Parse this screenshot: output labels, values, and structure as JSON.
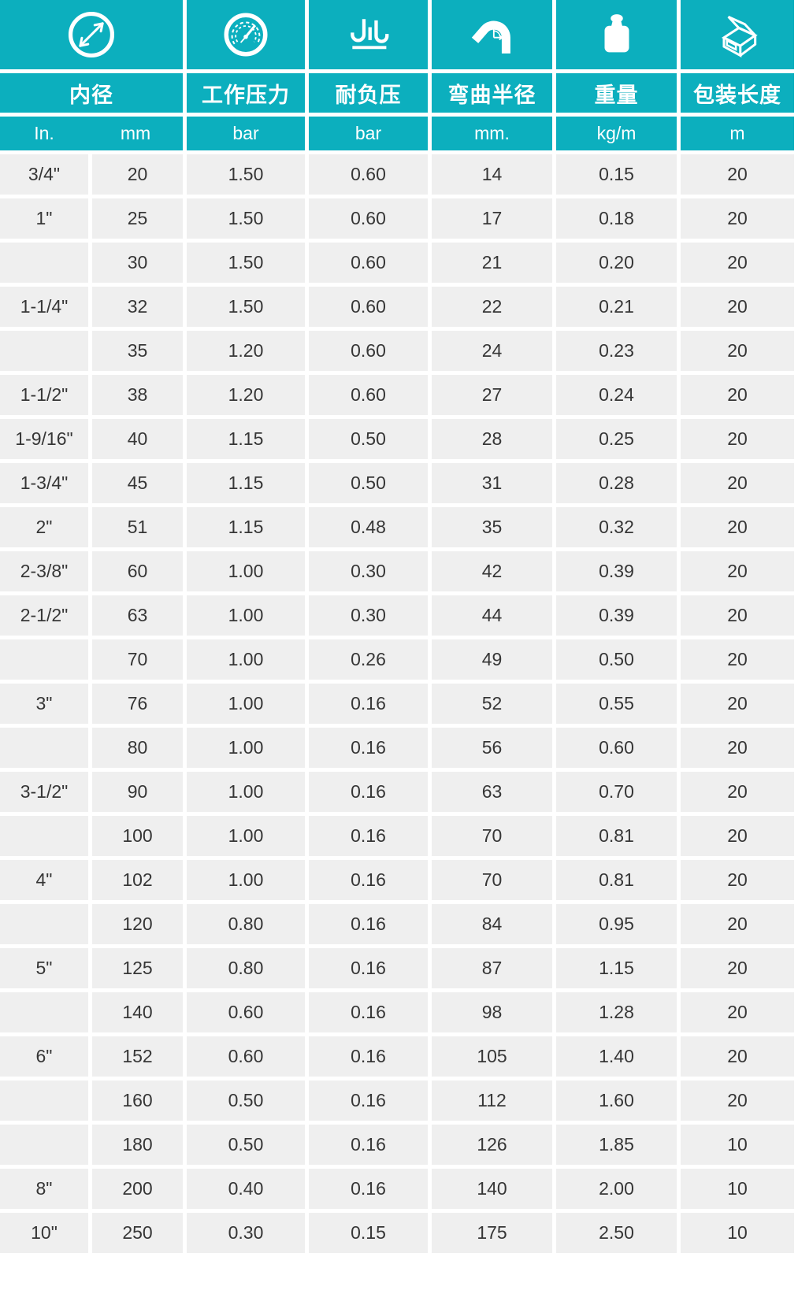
{
  "chart_data": {
    "type": "table",
    "header": {
      "columns": [
        {
          "icon": "diameter-icon",
          "label": "内径",
          "unit_in": "In.",
          "unit_mm": "mm"
        },
        {
          "icon": "pressure-gauge-icon",
          "label": "工作压力",
          "unit": "bar"
        },
        {
          "icon": "vacuum-icon",
          "label": "耐负压",
          "unit": "bar"
        },
        {
          "icon": "bend-radius-icon",
          "label": "弯曲半径",
          "unit": "mm."
        },
        {
          "icon": "weight-icon",
          "label": "重量",
          "unit": "kg/m"
        },
        {
          "icon": "package-icon",
          "label": "包装长度",
          "unit": "m"
        }
      ]
    },
    "rows": [
      [
        "3/4\"",
        "20",
        "1.50",
        "0.60",
        "14",
        "0.15",
        "20"
      ],
      [
        "1\"",
        "25",
        "1.50",
        "0.60",
        "17",
        "0.18",
        "20"
      ],
      [
        "",
        "30",
        "1.50",
        "0.60",
        "21",
        "0.20",
        "20"
      ],
      [
        "1-1/4\"",
        "32",
        "1.50",
        "0.60",
        "22",
        "0.21",
        "20"
      ],
      [
        "",
        "35",
        "1.20",
        "0.60",
        "24",
        "0.23",
        "20"
      ],
      [
        "1-1/2\"",
        "38",
        "1.20",
        "0.60",
        "27",
        "0.24",
        "20"
      ],
      [
        "1-9/16\"",
        "40",
        "1.15",
        "0.50",
        "28",
        "0.25",
        "20"
      ],
      [
        "1-3/4\"",
        "45",
        "1.15",
        "0.50",
        "31",
        "0.28",
        "20"
      ],
      [
        "2\"",
        "51",
        "1.15",
        "0.48",
        "35",
        "0.32",
        "20"
      ],
      [
        "2-3/8\"",
        "60",
        "1.00",
        "0.30",
        "42",
        "0.39",
        "20"
      ],
      [
        "2-1/2\"",
        "63",
        "1.00",
        "0.30",
        "44",
        "0.39",
        "20"
      ],
      [
        "",
        "70",
        "1.00",
        "0.26",
        "49",
        "0.50",
        "20"
      ],
      [
        "3\"",
        "76",
        "1.00",
        "0.16",
        "52",
        "0.55",
        "20"
      ],
      [
        "",
        "80",
        "1.00",
        "0.16",
        "56",
        "0.60",
        "20"
      ],
      [
        "3-1/2\"",
        "90",
        "1.00",
        "0.16",
        "63",
        "0.70",
        "20"
      ],
      [
        "",
        "100",
        "1.00",
        "0.16",
        "70",
        "0.81",
        "20"
      ],
      [
        "4\"",
        "102",
        "1.00",
        "0.16",
        "70",
        "0.81",
        "20"
      ],
      [
        "",
        "120",
        "0.80",
        "0.16",
        "84",
        "0.95",
        "20"
      ],
      [
        "5\"",
        "125",
        "0.80",
        "0.16",
        "87",
        "1.15",
        "20"
      ],
      [
        "",
        "140",
        "0.60",
        "0.16",
        "98",
        "1.28",
        "20"
      ],
      [
        "6\"",
        "152",
        "0.60",
        "0.16",
        "105",
        "1.40",
        "20"
      ],
      [
        "",
        "160",
        "0.50",
        "0.16",
        "112",
        "1.60",
        "20"
      ],
      [
        "",
        "180",
        "0.50",
        "0.16",
        "126",
        "1.85",
        "10"
      ],
      [
        "8\"",
        "200",
        "0.40",
        "0.16",
        "140",
        "2.00",
        "10"
      ],
      [
        "10\"",
        "250",
        "0.30",
        "0.15",
        "175",
        "2.50",
        "10"
      ]
    ]
  },
  "colors": {
    "header_teal": "#0CAFBE",
    "row_background": "#EFEFEF",
    "data_text": "#363636",
    "divider_white": "#FFFFFF"
  }
}
